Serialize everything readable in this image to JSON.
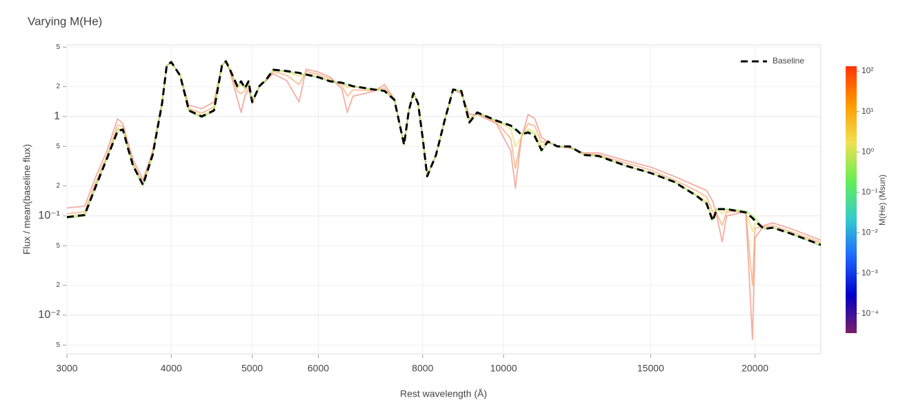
{
  "chart_data": {
    "type": "line",
    "title": "Varying M(He)",
    "xlabel": "Rest wavelength (Å)",
    "ylabel": "Flux / mean(baseline flux)",
    "xscale": "log",
    "yscale": "log",
    "grid": true,
    "legend": "upper right",
    "opacity": 0.7,
    "xlim": [
      3000,
      23980
    ],
    "ylim": [
      0.00408,
      5.27
    ],
    "xticks": [
      3000,
      4000,
      5000,
      6000,
      8000,
      10000,
      15000,
      20000
    ],
    "yticks": [
      5,
      2,
      1,
      {
        "value": 0.5,
        "label": "5"
      },
      {
        "value": 0.2,
        "label": "2"
      },
      {
        "value": 0.1,
        "label": "10⁻¹"
      },
      {
        "value": 0.05,
        "label": "5"
      },
      {
        "value": 0.02,
        "label": "2"
      },
      {
        "value": 0.01,
        "label": "10⁻²"
      },
      {
        "value": 0.005,
        "label": "5"
      }
    ],
    "x": [
      3000,
      3150,
      3250,
      3350,
      3450,
      3500,
      3550,
      3600,
      3700,
      3800,
      3900,
      3950,
      4000,
      4100,
      4200,
      4350,
      4500,
      4600,
      4650,
      4700,
      4800,
      4850,
      4900,
      4950,
      5000,
      5100,
      5200,
      5300,
      5500,
      5690,
      5800,
      6000,
      6200,
      6400,
      6500,
      6600,
      7000,
      7200,
      7400,
      7600,
      7700,
      7800,
      7900,
      8000,
      8100,
      8300,
      8500,
      8700,
      8900,
      9100,
      9300,
      9800,
      10200,
      10330,
      10500,
      10700,
      10900,
      11100,
      11300,
      11600,
      12000,
      12500,
      13000,
      14000,
      15000,
      16000,
      17000,
      17500,
      17800,
      18000,
      18270,
      18500,
      19500,
      19860,
      20000,
      20500,
      21000,
      22000,
      23980
    ],
    "series": [
      {
        "color": "#f08a78",
        "values": [
          0.12,
          0.125,
          0.25,
          0.45,
          0.95,
          0.85,
          0.55,
          0.37,
          0.23,
          0.45,
          1.4,
          3.2,
          3.5,
          2.6,
          1.3,
          1.2,
          1.4,
          3.3,
          3.5,
          2.9,
          1.5,
          1.1,
          1.6,
          1.9,
          1.35,
          2.0,
          2.3,
          2.7,
          2.3,
          1.4,
          3.0,
          2.8,
          2.5,
          1.9,
          1.1,
          1.6,
          1.8,
          2.1,
          1.5,
          0.52,
          1.15,
          1.72,
          1.36,
          0.61,
          0.25,
          0.41,
          0.91,
          1.87,
          1.7,
          1.05,
          1.05,
          0.85,
          0.45,
          0.19,
          0.6,
          1.05,
          0.95,
          0.62,
          0.55,
          0.5,
          0.48,
          0.43,
          0.43,
          0.36,
          0.31,
          0.25,
          0.2,
          0.18,
          0.14,
          0.1,
          0.055,
          0.1,
          0.11,
          0.0057,
          0.06,
          0.08,
          0.085,
          0.075,
          0.057
        ]
      },
      {
        "color": "#f7a26b",
        "values": [
          0.105,
          0.11,
          0.22,
          0.4,
          0.82,
          0.8,
          0.5,
          0.34,
          0.21,
          0.42,
          1.38,
          3.24,
          3.52,
          2.58,
          1.2,
          1.08,
          1.25,
          3.28,
          3.55,
          2.95,
          1.8,
          1.7,
          1.8,
          2.1,
          1.38,
          2.0,
          2.33,
          2.85,
          2.6,
          2.1,
          2.85,
          2.65,
          2.4,
          2.05,
          1.6,
          1.85,
          1.83,
          1.95,
          1.48,
          0.52,
          1.15,
          1.72,
          1.36,
          0.61,
          0.25,
          0.41,
          0.91,
          1.87,
          1.75,
          0.95,
          1.08,
          0.88,
          0.6,
          0.3,
          0.62,
          0.85,
          0.8,
          0.55,
          0.56,
          0.5,
          0.49,
          0.42,
          0.41,
          0.34,
          0.29,
          0.23,
          0.18,
          0.155,
          0.11,
          0.105,
          0.08,
          0.11,
          0.11,
          0.02,
          0.075,
          0.078,
          0.08,
          0.07,
          0.054
        ]
      },
      {
        "color": "#f5d76e",
        "values": [
          0.099,
          0.104,
          0.205,
          0.385,
          0.75,
          0.76,
          0.49,
          0.33,
          0.207,
          0.41,
          1.36,
          3.26,
          3.54,
          2.57,
          1.16,
          1.02,
          1.18,
          3.26,
          3.6,
          3.0,
          1.95,
          2.1,
          1.9,
          2.2,
          1.4,
          2.02,
          2.37,
          2.94,
          2.8,
          2.55,
          2.7,
          2.52,
          2.3,
          2.17,
          1.95,
          2.0,
          1.86,
          1.85,
          1.47,
          0.52,
          1.15,
          1.72,
          1.36,
          0.61,
          0.25,
          0.41,
          0.91,
          1.87,
          1.8,
          0.88,
          1.1,
          0.9,
          0.75,
          0.5,
          0.62,
          0.75,
          0.7,
          0.5,
          0.56,
          0.5,
          0.5,
          0.41,
          0.4,
          0.32,
          0.27,
          0.22,
          0.165,
          0.14,
          0.095,
          0.118,
          0.105,
          0.115,
          0.11,
          0.07,
          0.085,
          0.075,
          0.076,
          0.067,
          0.052
        ]
      },
      {
        "color": "#8ee65a",
        "values": [
          0.095,
          0.1,
          0.2,
          0.377,
          0.72,
          0.74,
          0.48,
          0.32,
          0.2,
          0.41,
          1.36,
          3.26,
          3.54,
          2.57,
          1.13,
          0.98,
          1.13,
          3.26,
          3.6,
          3.0,
          2.0,
          2.22,
          1.93,
          2.24,
          1.4,
          2.02,
          2.37,
          2.96,
          2.87,
          2.7,
          2.62,
          2.47,
          2.25,
          2.18,
          2.08,
          2.02,
          1.87,
          1.81,
          1.47,
          0.52,
          1.15,
          1.72,
          1.36,
          0.61,
          0.25,
          0.41,
          0.91,
          1.87,
          1.81,
          0.87,
          1.1,
          0.91,
          0.8,
          0.72,
          0.66,
          0.72,
          0.66,
          0.44,
          0.56,
          0.5,
          0.5,
          0.41,
          0.4,
          0.32,
          0.27,
          0.22,
          0.16,
          0.133,
          0.09,
          0.117,
          0.115,
          0.117,
          0.112,
          0.1,
          0.095,
          0.074,
          0.076,
          0.067,
          0.05
        ]
      },
      {
        "name": "Baseline",
        "color": "#000000",
        "dash": true,
        "values": [
          0.097,
          0.102,
          0.2,
          0.377,
          0.715,
          0.74,
          0.48,
          0.32,
          0.205,
          0.41,
          1.36,
          3.26,
          3.54,
          2.57,
          1.15,
          1.0,
          1.15,
          3.26,
          3.6,
          3.0,
          2.02,
          2.26,
          1.93,
          2.26,
          1.4,
          2.02,
          2.37,
          2.96,
          2.87,
          2.75,
          2.65,
          2.49,
          2.26,
          2.19,
          2.1,
          2.02,
          1.87,
          1.81,
          1.47,
          0.52,
          1.15,
          1.72,
          1.36,
          0.61,
          0.25,
          0.41,
          0.91,
          1.87,
          1.81,
          0.87,
          1.1,
          0.91,
          0.81,
          0.75,
          0.66,
          0.69,
          0.63,
          0.46,
          0.56,
          0.5,
          0.5,
          0.41,
          0.4,
          0.32,
          0.27,
          0.22,
          0.16,
          0.133,
          0.089,
          0.117,
          0.117,
          0.117,
          0.108,
          0.095,
          0.089,
          0.074,
          0.076,
          0.067,
          0.051
        ]
      }
    ],
    "colorbar": {
      "title": "M(He) (Msun)",
      "scale": "log",
      "range": [
        3.3e-05,
        132
      ],
      "colors": [
        "#7b1f6a",
        "#0000c8",
        "#1f66ff",
        "#33cccc",
        "#66ee55",
        "#f0e050",
        "#ff9a00",
        "#ff3300"
      ],
      "ticks": [
        {
          "value": 100,
          "label": "10²"
        },
        {
          "value": 10,
          "label": "10¹"
        },
        {
          "value": 1,
          "label": "10⁰"
        },
        {
          "value": 0.1,
          "label": "10⁻¹"
        },
        {
          "value": 0.01,
          "label": "10⁻²"
        },
        {
          "value": 0.001,
          "label": "10⁻³"
        },
        {
          "value": 0.0001,
          "label": "10⁻⁴"
        }
      ]
    }
  }
}
